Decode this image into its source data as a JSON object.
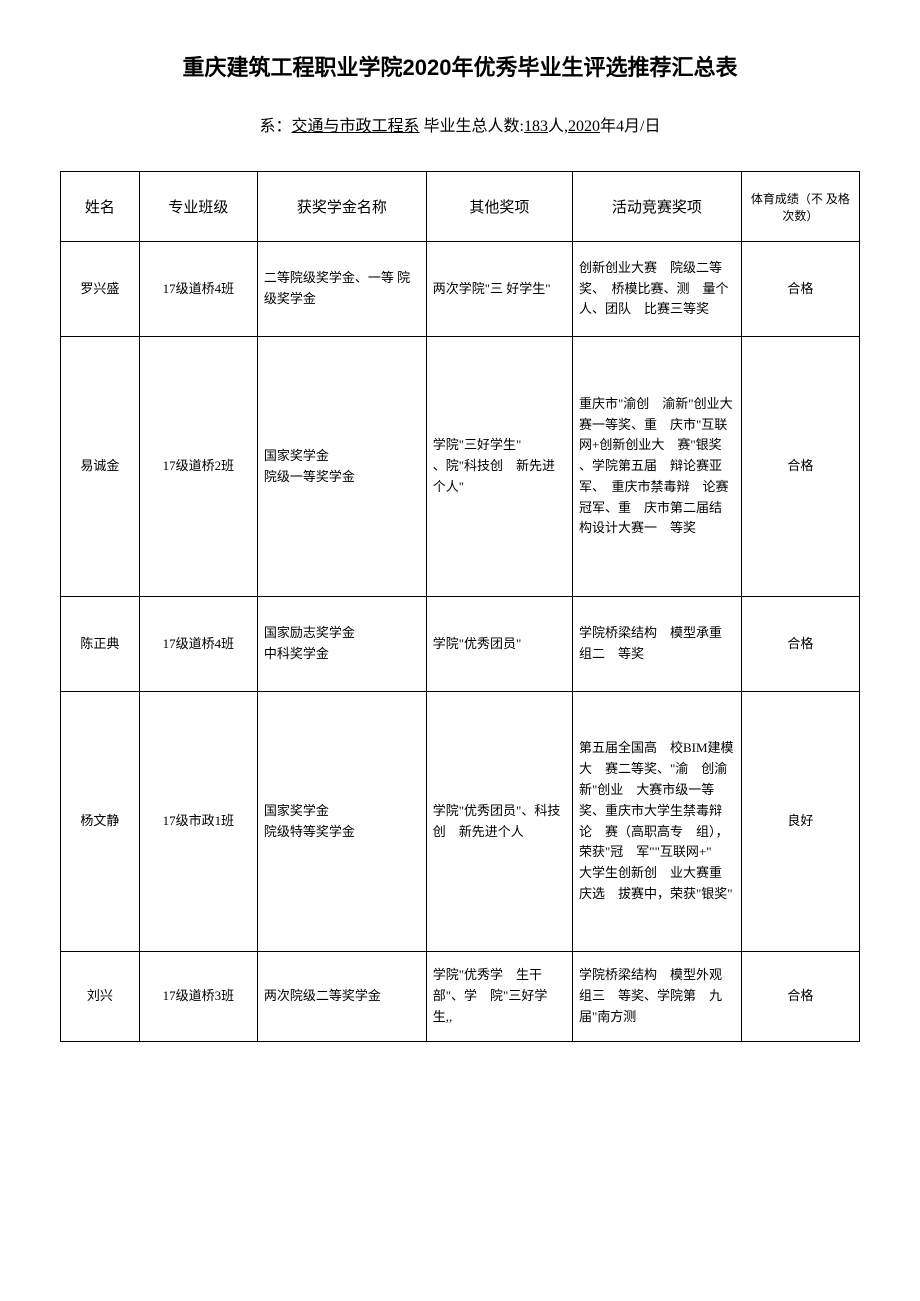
{
  "title": "重庆建筑工程职业学院2020年优秀毕业生评选推荐汇总表",
  "subtitle": {
    "prefix": "系：",
    "dept": "交通与市政工程系",
    "mid1": "  毕业生总人数:",
    "count": "183",
    "mid2": "人,",
    "year": "2020",
    "suffix": "年4月/日"
  },
  "headers": {
    "name": "姓名",
    "class": "专业班级",
    "scholarship": "获奖学金名称",
    "other": "其他奖项",
    "activity": "活动竞赛奖项",
    "pe": "体育成绩（不 及格次数）"
  },
  "rows": [
    {
      "name": "罗兴盛",
      "class": "17级道桥4班",
      "scholarship": "二等院级奖学金、一等 院级奖学金",
      "other": "两次学院\"三 好学生\"",
      "activity": "创新创业大赛　院级二等奖、　桥模比赛、测　量个人、团队　比赛三等奖",
      "pe": "合格"
    },
    {
      "name": "易诚金",
      "class": "17级道桥2班",
      "scholarship": "国家奖学金\n院级一等奖学金",
      "other": "学院\"三好学生\"\n、院\"科技创　新先进个人\"",
      "activity": "重庆市\"渝创　渝新\"创业大　赛一等奖、重　庆市\"互联网+创新创业大　赛\"银奖\n、学院第五届　辩论赛亚军、　重庆市禁毒辩　论赛冠军、重　庆市第二届结构设计大赛一　等奖",
      "pe": "合格"
    },
    {
      "name": "陈正典",
      "class": "17级道桥4班",
      "scholarship": "国家励志奖学金\n中科奖学金",
      "other": "学院\"优秀团员\"",
      "activity": "学院桥梁结构　模型承重组二　等奖",
      "pe": "合格"
    },
    {
      "name": "杨文静",
      "class": "17级市政1班",
      "scholarship": "国家奖学金\n院级特等奖学金",
      "other": "学院\"优秀团员\"、科技创　新先进个人",
      "activity": "第五届全国高　校BIM建模大　赛二等奖、\"渝　创渝新\"创业　大赛市级一等　奖、重庆市大学生禁毒辩论　赛（高职高专　组），荣获\"冠　军\"\"互联网+\"　大学生创新创　业大赛重庆选　拔赛中，荣获\"银奖\"",
      "pe": "良好"
    },
    {
      "name": "刘兴",
      "class": "17级道桥3班",
      "scholarship": "两次院级二等奖学金",
      "other": "学院\"优秀学　生干部\"、学　院\"三好学生,,",
      "activity": "学院桥梁结构　模型外观组三　等奖、学院第　九届\"南方测",
      "pe": "合格"
    }
  ]
}
